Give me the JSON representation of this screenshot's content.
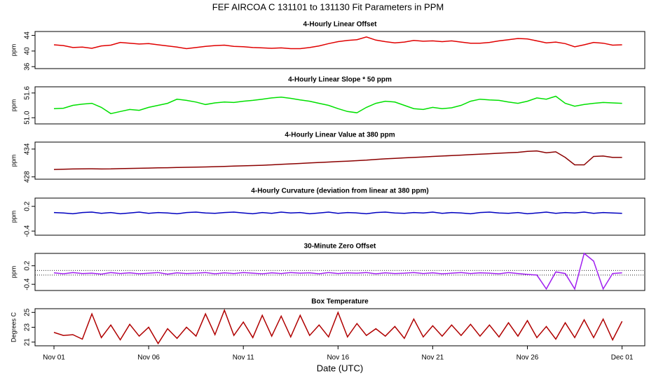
{
  "title": "FEF   AIRCOA C   131101 to 131130   Fit Parameters in PPM",
  "chart_data": [
    {
      "type": "line",
      "title": "4-Hourly Linear Offset",
      "ylabel": "ppm",
      "color": "#e00000",
      "xlim": [
        -1,
        31.2
      ],
      "ylim": [
        35.5,
        45
      ],
      "yticks": [
        36,
        40,
        44
      ],
      "x": [
        0,
        0.5,
        1,
        1.5,
        2,
        2.5,
        3,
        3.5,
        4,
        4.5,
        5,
        5.5,
        6,
        6.5,
        7,
        7.5,
        8,
        8.5,
        9,
        9.5,
        10,
        10.5,
        11,
        11.5,
        12,
        12.5,
        13,
        13.5,
        14,
        14.5,
        15,
        15.5,
        16,
        16.5,
        17,
        17.5,
        18,
        18.5,
        19,
        19.5,
        20,
        20.5,
        21,
        21.5,
        22,
        22.5,
        23,
        23.5,
        24,
        24.5,
        25,
        25.5,
        26,
        26.5,
        27,
        27.5,
        28,
        28.5,
        29,
        29.5,
        30
      ],
      "values": [
        41.6,
        41.4,
        40.9,
        41.0,
        40.7,
        41.3,
        41.5,
        42.2,
        42.0,
        41.8,
        41.9,
        41.6,
        41.3,
        41.0,
        40.6,
        40.9,
        41.2,
        41.4,
        41.5,
        41.2,
        41.1,
        40.9,
        40.8,
        40.7,
        40.8,
        40.6,
        40.6,
        40.9,
        41.3,
        41.9,
        42.4,
        42.7,
        42.9,
        43.6,
        42.8,
        42.4,
        42.1,
        42.3,
        42.7,
        42.5,
        42.6,
        42.4,
        42.6,
        42.3,
        42.0,
        42.0,
        42.2,
        42.6,
        42.9,
        43.2,
        43.1,
        42.6,
        42.1,
        42.3,
        41.9,
        41.1,
        41.6,
        42.2,
        42.0,
        41.5,
        41.6
      ]
    },
    {
      "type": "line",
      "title": "4-Hourly Linear Slope * 50 ppm",
      "ylabel": "ppm",
      "color": "#00e000",
      "xlim": [
        -1,
        31.2
      ],
      "ylim": [
        50.85,
        51.75
      ],
      "yticks": [
        {
          "value": 51,
          "label": "51.0"
        },
        51.6
      ],
      "x": [
        0,
        0.5,
        1,
        1.5,
        2,
        2.5,
        3,
        3.5,
        4,
        4.5,
        5,
        5.5,
        6,
        6.5,
        7,
        7.5,
        8,
        8.5,
        9,
        9.5,
        10,
        10.5,
        11,
        11.5,
        12,
        12.5,
        13,
        13.5,
        14,
        14.5,
        15,
        15.5,
        16,
        16.5,
        17,
        17.5,
        18,
        18.5,
        19,
        19.5,
        20,
        20.5,
        21,
        21.5,
        22,
        22.5,
        23,
        23.5,
        24,
        24.5,
        25,
        25.5,
        26,
        26.5,
        27,
        27.5,
        28,
        28.5,
        29,
        29.5,
        30
      ],
      "values": [
        51.22,
        51.23,
        51.3,
        51.33,
        51.35,
        51.25,
        51.1,
        51.15,
        51.2,
        51.18,
        51.25,
        51.3,
        51.35,
        51.45,
        51.42,
        51.38,
        51.32,
        51.36,
        51.38,
        51.37,
        51.4,
        51.42,
        51.45,
        51.48,
        51.5,
        51.47,
        51.43,
        51.4,
        51.35,
        51.3,
        51.22,
        51.15,
        51.12,
        51.25,
        51.35,
        51.4,
        51.38,
        51.3,
        51.22,
        51.2,
        51.25,
        51.22,
        51.24,
        51.3,
        51.4,
        51.45,
        51.43,
        51.42,
        51.38,
        51.35,
        51.4,
        51.48,
        51.45,
        51.52,
        51.35,
        51.28,
        51.32,
        51.35,
        51.37,
        51.36,
        51.35
      ]
    },
    {
      "type": "line",
      "title": "4-Hourly Linear Value at 380 ppm",
      "ylabel": "ppm",
      "color": "#8b0000",
      "xlim": [
        -1,
        31.2
      ],
      "ylim": [
        427.5,
        435.5
      ],
      "yticks": [
        428,
        434
      ],
      "x": [
        0,
        0.5,
        1,
        1.5,
        2,
        2.5,
        3,
        3.5,
        4,
        4.5,
        5,
        5.5,
        6,
        6.5,
        7,
        7.5,
        8,
        8.5,
        9,
        9.5,
        10,
        10.5,
        11,
        11.5,
        12,
        12.5,
        13,
        13.5,
        14,
        14.5,
        15,
        15.5,
        16,
        16.5,
        17,
        17.5,
        18,
        18.5,
        19,
        19.5,
        20,
        20.5,
        21,
        21.5,
        22,
        22.5,
        23,
        23.5,
        24,
        24.5,
        25,
        25.5,
        26,
        26.5,
        27,
        27.5,
        28,
        28.5,
        29,
        29.5,
        30
      ],
      "values": [
        429.6,
        429.65,
        429.7,
        429.72,
        429.75,
        429.7,
        429.72,
        429.78,
        429.82,
        429.86,
        429.9,
        429.94,
        429.98,
        430.02,
        430.06,
        430.1,
        430.14,
        430.2,
        430.26,
        430.32,
        430.38,
        430.44,
        430.5,
        430.6,
        430.7,
        430.8,
        430.9,
        431.0,
        431.1,
        431.2,
        431.3,
        431.4,
        431.5,
        431.6,
        431.75,
        431.9,
        432.0,
        432.1,
        432.2,
        432.3,
        432.4,
        432.5,
        432.6,
        432.7,
        432.8,
        432.9,
        433.0,
        433.1,
        433.2,
        433.3,
        433.5,
        433.6,
        433.2,
        433.4,
        432.2,
        430.6,
        430.6,
        432.4,
        432.5,
        432.2,
        432.2
      ]
    },
    {
      "type": "line",
      "title": "4-Hourly Curvature (deviation from linear at 380 ppm)",
      "ylabel": "ppm",
      "color": "#0000c0",
      "xlim": [
        -1,
        31.2
      ],
      "ylim": [
        -0.5,
        0.4
      ],
      "yticks": [
        -0.4,
        0.2
      ],
      "x": [
        0,
        0.5,
        1,
        1.5,
        2,
        2.5,
        3,
        3.5,
        4,
        4.5,
        5,
        5.5,
        6,
        6.5,
        7,
        7.5,
        8,
        8.5,
        9,
        9.5,
        10,
        10.5,
        11,
        11.5,
        12,
        12.5,
        13,
        13.5,
        14,
        14.5,
        15,
        15.5,
        16,
        16.5,
        17,
        17.5,
        18,
        18.5,
        19,
        19.5,
        20,
        20.5,
        21,
        21.5,
        22,
        22.5,
        23,
        23.5,
        24,
        24.5,
        25,
        25.5,
        26,
        26.5,
        27,
        27.5,
        28,
        28.5,
        29,
        29.5,
        30
      ],
      "values": [
        0.05,
        0.04,
        0.02,
        0.05,
        0.06,
        0.03,
        0.05,
        0.02,
        0.04,
        0.06,
        0.03,
        0.05,
        0.04,
        0.02,
        0.05,
        0.06,
        0.04,
        0.03,
        0.05,
        0.06,
        0.04,
        0.02,
        0.05,
        0.03,
        0.06,
        0.04,
        0.05,
        0.02,
        0.04,
        0.06,
        0.03,
        0.05,
        0.04,
        0.02,
        0.05,
        0.06,
        0.04,
        0.03,
        0.05,
        0.04,
        0.06,
        0.03,
        0.05,
        0.04,
        0.02,
        0.05,
        0.06,
        0.04,
        0.03,
        0.05,
        0.02,
        0.04,
        0.06,
        0.03,
        0.05,
        0.04,
        0.06,
        0.03,
        0.05,
        0.04,
        0.03
      ]
    },
    {
      "type": "line",
      "title": "30-Minute Zero Offset",
      "ylabel": "ppm",
      "color": "#a020f0",
      "xlim": [
        -1,
        31.2
      ],
      "ylim": [
        -0.6,
        0.6
      ],
      "yticks": [
        -0.4,
        0.2
      ],
      "reference_lines": [
        0.05,
        -0.1
      ],
      "x": [
        0,
        0.5,
        1,
        1.5,
        2,
        2.5,
        3,
        3.5,
        4,
        4.5,
        5,
        5.5,
        6,
        6.5,
        7,
        7.5,
        8,
        8.5,
        9,
        9.5,
        10,
        10.5,
        11,
        11.5,
        12,
        12.5,
        13,
        13.5,
        14,
        14.5,
        15,
        15.5,
        16,
        16.5,
        17,
        17.5,
        18,
        18.5,
        19,
        19.5,
        20,
        20.5,
        21,
        21.5,
        22,
        22.5,
        23,
        23.5,
        24,
        24.5,
        25,
        25.5,
        26,
        26.5,
        27,
        27.5,
        28,
        28.5,
        29,
        29.5,
        30
      ],
      "values": [
        -0.03,
        -0.06,
        -0.02,
        -0.05,
        -0.04,
        -0.07,
        -0.02,
        -0.05,
        -0.03,
        -0.06,
        -0.04,
        -0.02,
        -0.07,
        -0.03,
        -0.05,
        -0.04,
        -0.02,
        -0.06,
        -0.03,
        -0.05,
        -0.02,
        -0.04,
        -0.06,
        -0.03,
        -0.05,
        -0.02,
        -0.04,
        -0.03,
        -0.06,
        -0.02,
        -0.05,
        -0.03,
        -0.04,
        -0.02,
        -0.06,
        -0.03,
        -0.05,
        -0.04,
        -0.02,
        -0.05,
        -0.03,
        -0.06,
        -0.04,
        -0.02,
        -0.05,
        -0.03,
        -0.04,
        -0.06,
        -0.02,
        -0.05,
        -0.08,
        -0.1,
        -0.55,
        0.0,
        -0.05,
        -0.55,
        0.6,
        0.35,
        -0.55,
        -0.05,
        -0.03
      ]
    },
    {
      "type": "line",
      "title": "Box Temperature",
      "ylabel": "Degrees C",
      "xlabel": "Date (UTC)",
      "color": "#b00000",
      "xlim": [
        -1,
        31.2
      ],
      "ylim": [
        20.5,
        25.5
      ],
      "yticks": [
        21,
        23,
        25
      ],
      "xticks": [
        {
          "value": 0,
          "label": "Nov 01"
        },
        {
          "value": 5,
          "label": "Nov 06"
        },
        {
          "value": 10,
          "label": "Nov 11"
        },
        {
          "value": 15,
          "label": "Nov 16"
        },
        {
          "value": 20,
          "label": "Nov 21"
        },
        {
          "value": 25,
          "label": "Nov 26"
        },
        {
          "value": 30,
          "label": "Dec 01"
        }
      ],
      "x": [
        0,
        0.5,
        1,
        1.5,
        2,
        2.5,
        3,
        3.5,
        4,
        4.5,
        5,
        5.5,
        6,
        6.5,
        7,
        7.5,
        8,
        8.5,
        9,
        9.5,
        10,
        10.5,
        11,
        11.5,
        12,
        12.5,
        13,
        13.5,
        14,
        14.5,
        15,
        15.5,
        16,
        16.5,
        17,
        17.5,
        18,
        18.5,
        19,
        19.5,
        20,
        20.5,
        21,
        21.5,
        22,
        22.5,
        23,
        23.5,
        24,
        24.5,
        25,
        25.5,
        26,
        26.5,
        27,
        27.5,
        28,
        28.5,
        29,
        29.5,
        30
      ],
      "values": [
        22.3,
        21.9,
        22.0,
        21.4,
        24.8,
        21.6,
        23.3,
        21.3,
        23.4,
        21.8,
        23.0,
        20.8,
        22.8,
        21.5,
        23.0,
        21.8,
        24.8,
        22.0,
        25.3,
        21.9,
        23.7,
        21.6,
        24.6,
        21.8,
        24.5,
        21.7,
        24.6,
        21.9,
        23.3,
        21.7,
        25.0,
        21.7,
        23.5,
        21.9,
        22.8,
        21.8,
        23.1,
        21.5,
        24.1,
        21.7,
        23.2,
        21.8,
        23.3,
        21.9,
        23.4,
        21.8,
        23.3,
        21.7,
        23.6,
        21.8,
        23.9,
        21.6,
        23.1,
        21.4,
        23.6,
        21.6,
        24.0,
        21.6,
        24.1,
        21.3,
        23.8
      ]
    }
  ]
}
